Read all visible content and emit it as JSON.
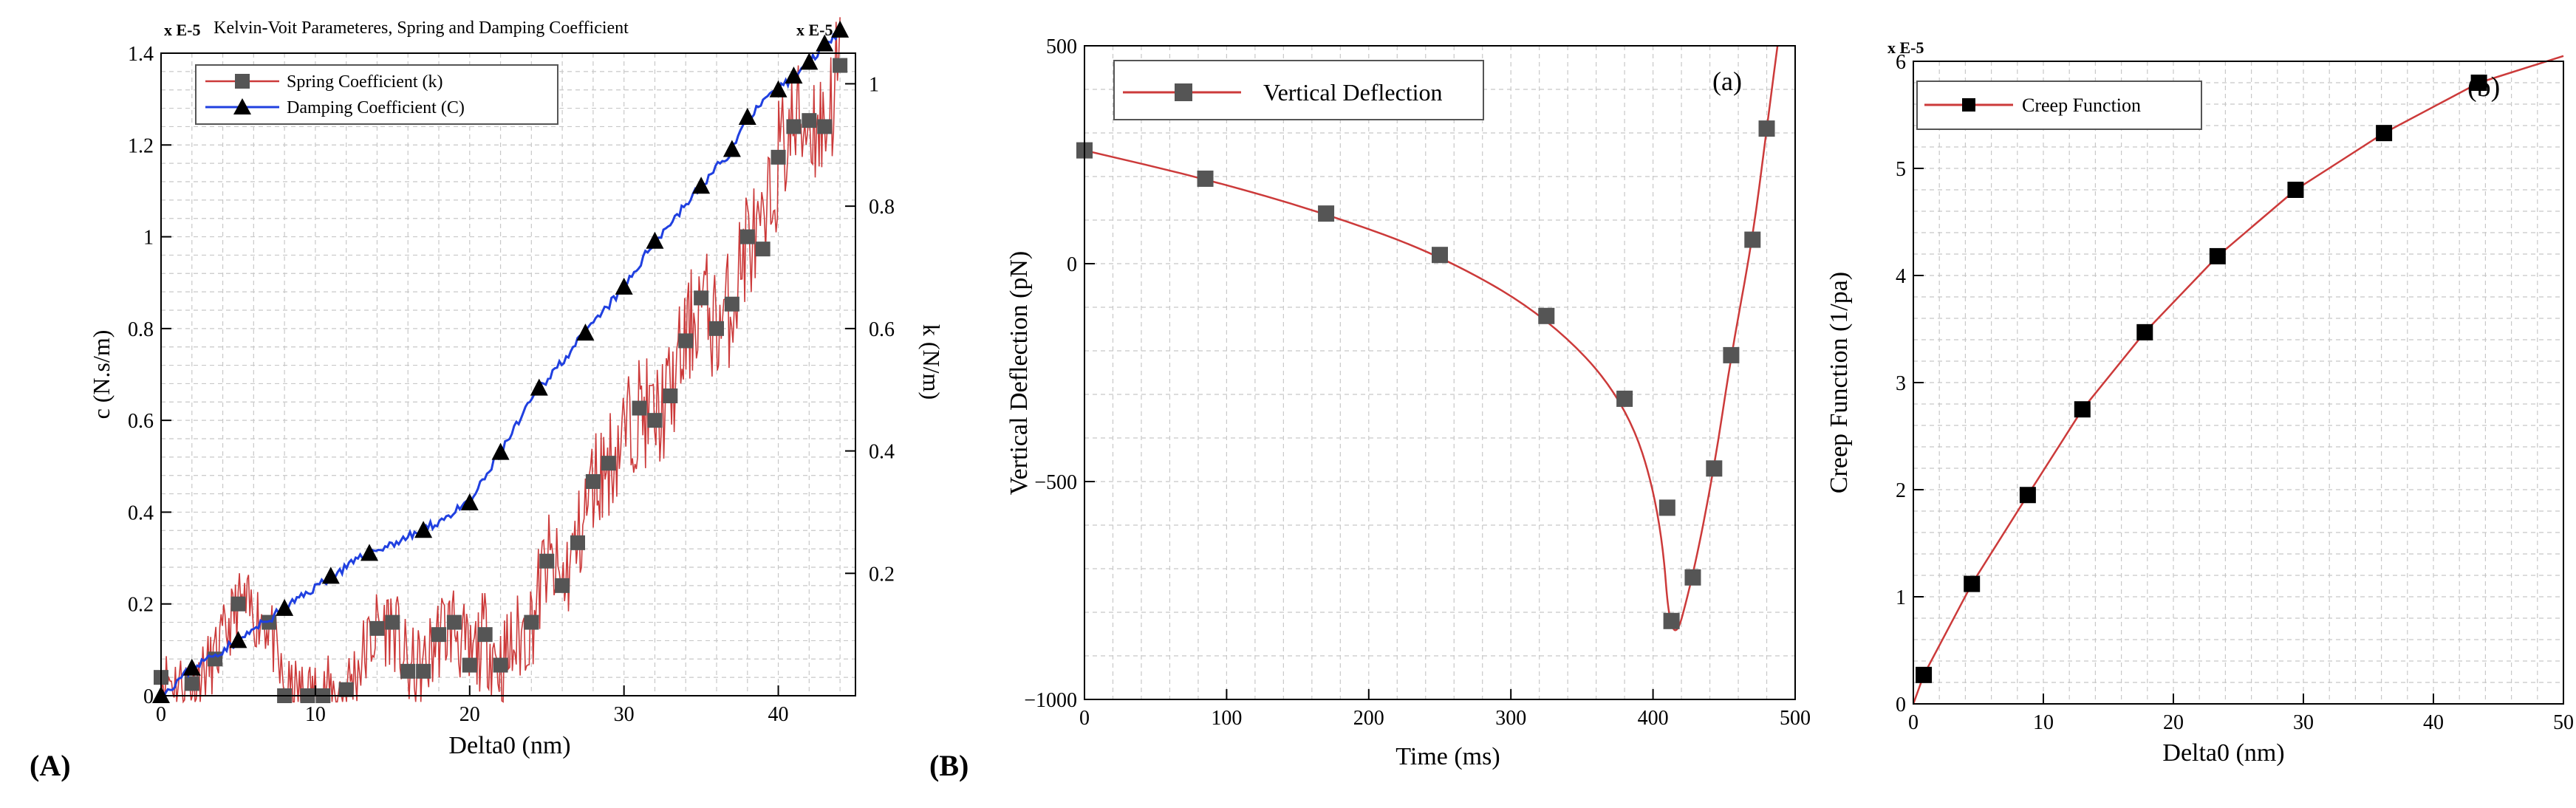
{
  "panels": {
    "A": "(A)",
    "B": "(B)"
  },
  "chart_data": [
    {
      "id": "chartA",
      "type": "line",
      "title": "Kelvin-Voit Parameteres, Spring and Damping Coefficient",
      "xlabel": "Delta0 (nm)",
      "ylabel": "c (N.s/m)",
      "y2label": "k (N/m)",
      "y_multiplier": "x  E-5",
      "y2_multiplier": "x  E-5",
      "xlim": [
        0,
        45
      ],
      "ylim": [
        0,
        1.4
      ],
      "y2lim": [
        0,
        1.05
      ],
      "xticks": [
        0,
        10,
        20,
        30,
        40
      ],
      "yticks": [
        0,
        0.2,
        0.4,
        0.6,
        0.8,
        1,
        1.2,
        1.4
      ],
      "yticklabels": [
        "0",
        "0.2",
        "0.4",
        "0.6",
        "0.8",
        "1",
        "1.2",
        "1.4"
      ],
      "y2ticks": [
        0.2,
        0.4,
        0.6,
        0.8,
        1
      ],
      "y2ticklabels": [
        "0.2",
        "0.4",
        "0.6",
        "0.8",
        "1"
      ],
      "grid": true,
      "legend_position": "top-left",
      "series": [
        {
          "name": "Spring Coefficient (k)",
          "axis": "right",
          "color": "#cc3a3a",
          "marker": "square",
          "marker_color": "#555555",
          "x": [
            0,
            2,
            3.5,
            5,
            7,
            8,
            9.5,
            10.5,
            12,
            14,
            15,
            16,
            17,
            18,
            19,
            20,
            21,
            22,
            24,
            25,
            26,
            27,
            28,
            29,
            31,
            32,
            33,
            34,
            35,
            36,
            37,
            38,
            39,
            40,
            41,
            42,
            43,
            44
          ],
          "values": [
            0.03,
            0.02,
            0.06,
            0.15,
            0.12,
            0.0,
            0.0,
            0.0,
            0.01,
            0.11,
            0.12,
            0.04,
            0.04,
            0.1,
            0.12,
            0.05,
            0.1,
            0.05,
            0.12,
            0.22,
            0.18,
            0.25,
            0.35,
            0.38,
            0.47,
            0.45,
            0.49,
            0.58,
            0.65,
            0.6,
            0.64,
            0.75,
            0.73,
            0.88,
            0.93,
            0.94,
            0.93,
            1.03
          ]
        },
        {
          "name": "Damping Coefficient (C)",
          "axis": "left",
          "color": "#2040e0",
          "marker": "triangle",
          "marker_color": "#000000",
          "x": [
            0,
            2,
            5,
            8,
            11,
            13.5,
            17,
            20,
            22,
            24.5,
            27.5,
            30,
            32,
            35,
            37,
            38,
            40,
            41,
            42,
            43,
            44
          ],
          "values": [
            0,
            0.06,
            0.12,
            0.19,
            0.26,
            0.31,
            0.36,
            0.42,
            0.53,
            0.67,
            0.79,
            0.89,
            0.99,
            1.11,
            1.19,
            1.26,
            1.32,
            1.35,
            1.38,
            1.42,
            1.45
          ]
        }
      ]
    },
    {
      "id": "chartBa",
      "type": "line",
      "title": "",
      "annotation": "(a)",
      "xlabel": "Time (ms)",
      "ylabel": "Vertical Deflection (pN)",
      "xlim": [
        0,
        500
      ],
      "ylim": [
        -1000,
        500
      ],
      "xticks": [
        0,
        100,
        200,
        300,
        400,
        500
      ],
      "yticks": [
        -1000,
        -500,
        0,
        500
      ],
      "yticklabels": [
        "−1000",
        "−500",
        "0",
        "500"
      ],
      "grid": true,
      "legend_position": "top-left",
      "series": [
        {
          "name": "Vertical Deflection",
          "color": "#cc3a3a",
          "marker": "square",
          "marker_color": "#555555",
          "x": [
            0,
            85,
            170,
            250,
            325,
            380,
            410,
            413,
            428,
            443,
            455,
            470,
            480
          ],
          "values": [
            260,
            195,
            115,
            20,
            -120,
            -310,
            -560,
            -820,
            -720,
            -470,
            -210,
            55,
            310
          ]
        }
      ]
    },
    {
      "id": "chartBb",
      "type": "line",
      "title": "",
      "annotation": "(b)",
      "xlabel": "Delta0 (nm)",
      "ylabel": "Creep Function (1/pa)",
      "y_multiplier": "x  E-5",
      "xlim": [
        0,
        50
      ],
      "ylim": [
        0,
        6
      ],
      "xticks": [
        0,
        10,
        20,
        30,
        40,
        50
      ],
      "yticks": [
        0,
        1,
        2,
        3,
        4,
        5,
        6
      ],
      "yticklabels": [
        "0",
        "1",
        "2",
        "3",
        "4",
        "5",
        "6"
      ],
      "grid": true,
      "legend_position": "top-left",
      "series": [
        {
          "name": "Creep Function",
          "color": "#cc3a3a",
          "marker": "square",
          "marker_color": "#000000",
          "x": [
            0.8,
            4.5,
            8.8,
            13,
            17.8,
            23.4,
            29.4,
            36.2,
            43.5
          ],
          "values": [
            0.27,
            1.12,
            1.95,
            2.75,
            3.47,
            4.18,
            4.8,
            5.33,
            5.8
          ]
        }
      ]
    }
  ]
}
